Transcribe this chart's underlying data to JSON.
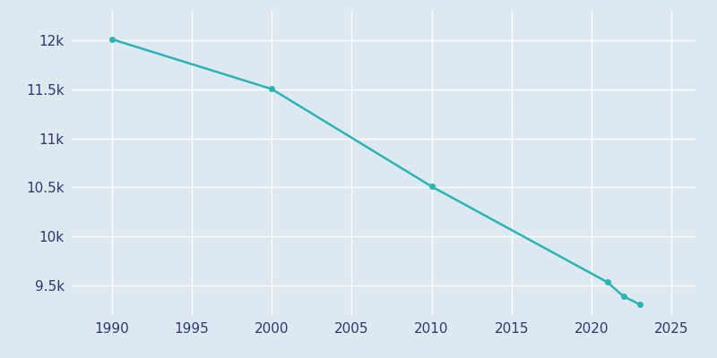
{
  "years": [
    1990,
    2000,
    2010,
    2021,
    2022,
    2023
  ],
  "population": [
    12010,
    11503,
    10510,
    9534,
    9390,
    9310
  ],
  "line_color": "#2ab5b5",
  "marker_color": "#2ab5b5",
  "plot_bg_color": "#dde8f0",
  "grid_color": "#ffffff",
  "tick_color": "#2b3a6e",
  "xlim": [
    1987.5,
    2026.5
  ],
  "ylim": [
    9200,
    12300
  ],
  "xticks": [
    1990,
    1995,
    2000,
    2005,
    2010,
    2015,
    2020,
    2025
  ],
  "ytick_values": [
    9500,
    10000,
    10500,
    11000,
    11500,
    12000
  ],
  "ytick_labels": [
    "9.5k",
    "10k",
    "10.5k",
    "11k",
    "11.5k",
    "12k"
  ],
  "linewidth": 1.8,
  "markersize": 4
}
